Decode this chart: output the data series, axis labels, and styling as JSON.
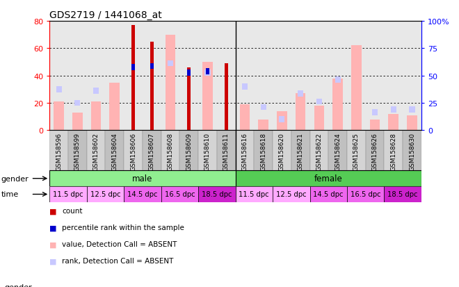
{
  "title": "GDS2719 / 1441068_at",
  "samples": [
    "GSM158596",
    "GSM158599",
    "GSM158602",
    "GSM158604",
    "GSM158606",
    "GSM158607",
    "GSM158608",
    "GSM158609",
    "GSM158610",
    "GSM158611",
    "GSM158616",
    "GSM158618",
    "GSM158620",
    "GSM158621",
    "GSM158622",
    "GSM158624",
    "GSM158625",
    "GSM158626",
    "GSM158628",
    "GSM158630"
  ],
  "count_values": [
    0,
    0,
    0,
    0,
    77,
    65,
    0,
    46,
    0,
    49,
    0,
    0,
    0,
    0,
    0,
    0,
    0,
    0,
    0,
    0
  ],
  "percentile_rank": [
    0,
    0,
    0,
    0,
    46,
    47,
    0,
    42,
    43,
    0,
    0,
    0,
    0,
    0,
    0,
    0,
    0,
    0,
    0,
    0
  ],
  "absent_value": [
    21,
    13,
    21,
    35,
    0,
    0,
    70,
    0,
    50,
    0,
    19,
    8,
    14,
    27,
    18,
    38,
    62,
    8,
    12,
    11
  ],
  "absent_rank": [
    30,
    20,
    29,
    0,
    0,
    0,
    49,
    0,
    42,
    0,
    32,
    17,
    8,
    27,
    21,
    37,
    0,
    13,
    15,
    15
  ],
  "ylim_left": [
    0,
    80
  ],
  "ylim_right": [
    0,
    100
  ],
  "yticks_left": [
    0,
    20,
    40,
    60,
    80
  ],
  "yticks_right": [
    0,
    25,
    50,
    75,
    100
  ],
  "color_count": "#cc0000",
  "color_percentile": "#0000cc",
  "color_absent_value": "#ffb3b3",
  "color_absent_rank": "#c8c8ff",
  "color_male_bg": "#90ee90",
  "color_female_bg": "#55cc55",
  "color_plot_bg": "#e8e8e8",
  "color_tick_bg_odd": "#d4d4d4",
  "color_tick_bg_even": "#c0c0c0",
  "time_colors": [
    "#ffaaff",
    "#ffaaff",
    "#ee66ee",
    "#ee66ee",
    "#cc22cc",
    "#ffaaff",
    "#ffaaff",
    "#ee66ee",
    "#ee66ee",
    "#cc22cc"
  ],
  "gender_labels": [
    "male",
    "female"
  ],
  "time_labels": [
    "11.5 dpc",
    "12.5 dpc",
    "14.5 dpc",
    "16.5 dpc",
    "18.5 dpc",
    "11.5 dpc",
    "12.5 dpc",
    "14.5 dpc",
    "16.5 dpc",
    "18.5 dpc"
  ]
}
